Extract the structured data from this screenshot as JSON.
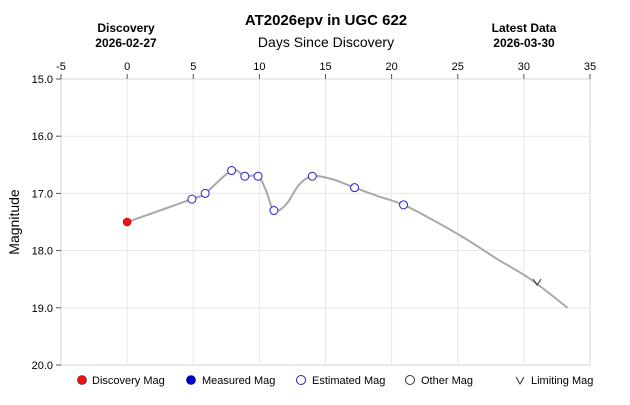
{
  "chart_data": {
    "type": "scatter",
    "title": "AT2026epv in UGC 622",
    "xlabel": "Days Since Discovery",
    "ylabel": "Magnitude",
    "discovery_label": "Discovery",
    "discovery_date": "2026-02-27",
    "latest_label": "Latest Data",
    "latest_date": "2026-03-30",
    "xlim": [
      -5,
      35
    ],
    "ylim": [
      15.0,
      20.0
    ],
    "y_inverted": true,
    "grid": true,
    "x_ticks": [
      "-5",
      "0",
      "5",
      "10",
      "15",
      "20",
      "25",
      "30",
      "35"
    ],
    "y_ticks": [
      "15.0",
      "16.0",
      "17.0",
      "18.0",
      "19.0",
      "20.0"
    ],
    "colors": {
      "discovery": "#ee1111",
      "measured": "#0000cc",
      "estimated": "#2222cc",
      "other": "#333333",
      "curve": "#a9a9a9",
      "grid": "#e6e6e6"
    },
    "series": [
      {
        "name": "Discovery Mag",
        "marker": "filled-red-circle",
        "points": [
          [
            0,
            17.5
          ]
        ]
      },
      {
        "name": "Measured Mag",
        "marker": "filled-blue-circle",
        "points": []
      },
      {
        "name": "Estimated Mag",
        "marker": "open-blue-circle",
        "points": [
          [
            4.9,
            17.1
          ],
          [
            5.9,
            17.0
          ],
          [
            7.9,
            16.6
          ],
          [
            8.9,
            16.7
          ],
          [
            9.9,
            16.7
          ],
          [
            11.1,
            17.3
          ],
          [
            14.0,
            16.7
          ],
          [
            17.2,
            16.9
          ],
          [
            20.9,
            17.2
          ]
        ]
      },
      {
        "name": "Other Mag",
        "marker": "open-black-circle",
        "points": []
      },
      {
        "name": "Limiting Mag",
        "marker": "v",
        "points": [
          [
            31.0,
            18.55
          ]
        ]
      }
    ],
    "curve": [
      [
        0,
        17.5
      ],
      [
        4.9,
        17.1
      ],
      [
        5.9,
        17.0
      ],
      [
        7.9,
        16.6
      ],
      [
        8.9,
        16.7
      ],
      [
        9.9,
        16.7
      ],
      [
        10.5,
        16.95
      ],
      [
        11.1,
        17.3
      ],
      [
        12.0,
        17.2
      ],
      [
        13.0,
        16.85
      ],
      [
        14.0,
        16.7
      ],
      [
        15.5,
        16.75
      ],
      [
        17.2,
        16.9
      ],
      [
        19.0,
        17.05
      ],
      [
        20.9,
        17.2
      ],
      [
        23.0,
        17.45
      ],
      [
        25.5,
        17.78
      ],
      [
        28.0,
        18.15
      ],
      [
        30.5,
        18.5
      ],
      [
        33.3,
        19.0
      ]
    ]
  }
}
